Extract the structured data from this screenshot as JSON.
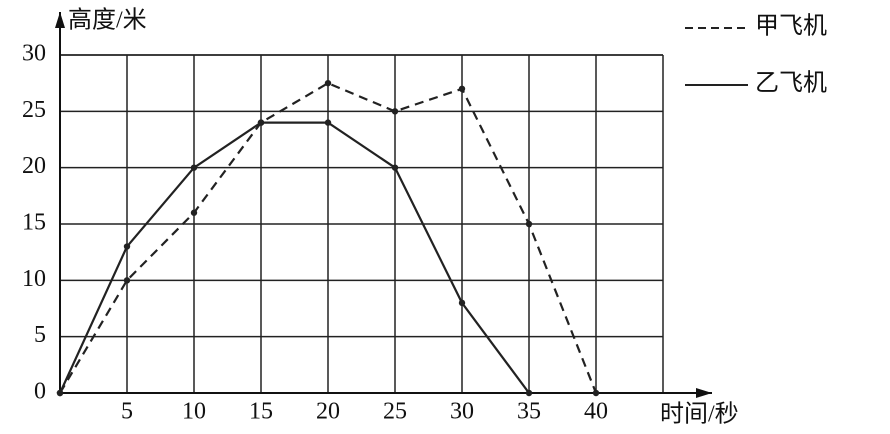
{
  "chart_data": {
    "type": "line",
    "y_label": "高度/米",
    "x_label": "时间/秒",
    "xlim": [
      0,
      45
    ],
    "ylim": [
      0,
      30
    ],
    "xticks": [
      5,
      10,
      15,
      20,
      25,
      30,
      35,
      40
    ],
    "yticks": [
      0,
      5,
      10,
      15,
      20,
      25,
      30
    ],
    "grid": true,
    "legend": "top-right",
    "series": [
      {
        "name": "甲飞机",
        "color": "#222222",
        "dashed": true,
        "x": [
          0,
          5,
          10,
          15,
          20,
          25,
          30,
          35,
          40
        ],
        "values": [
          0,
          10,
          16,
          24,
          27.5,
          25,
          27,
          15,
          0
        ]
      },
      {
        "name": "乙飞机",
        "color": "#222222",
        "dashed": false,
        "x": [
          0,
          5,
          10,
          15,
          20,
          25,
          30,
          35
        ],
        "values": [
          0,
          13,
          20,
          24,
          24,
          20,
          8,
          0
        ]
      }
    ]
  }
}
